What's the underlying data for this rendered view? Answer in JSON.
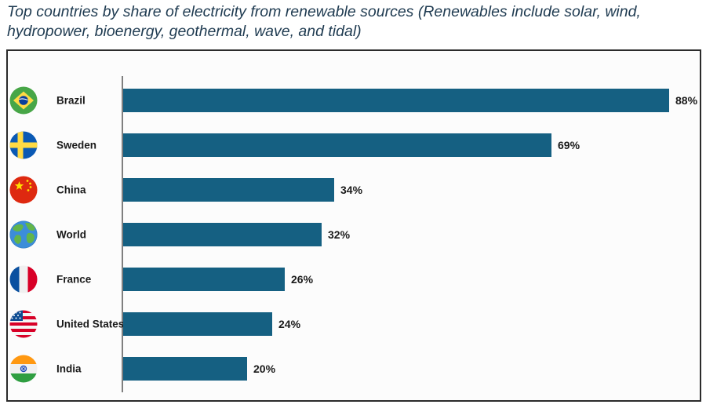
{
  "title": "Top countries by share of electricity from renewable sources (Renewables include solar, wind,\nhydropower, bioenergy, geothermal, wave, and tidal)",
  "chart_data": {
    "type": "bar",
    "orientation": "horizontal",
    "title": "Top countries by share of electricity from renewable sources (Renewables include solar, wind, hydropower, bioenergy, geothermal, wave, and tidal)",
    "categories": [
      "Brazil",
      "Sweden",
      "China",
      "World",
      "France",
      "United States",
      "India"
    ],
    "values": [
      88,
      69,
      34,
      32,
      26,
      24,
      20
    ],
    "value_labels": [
      "88%",
      "69%",
      "34%",
      "32%",
      "26%",
      "24%",
      "20%"
    ],
    "unit": "%",
    "xlim": [
      0,
      93
    ],
    "grid": false,
    "legend": "none",
    "bar_color": "#156082",
    "flag_icons": [
      "brazil-flag-icon",
      "sweden-flag-icon",
      "china-flag-icon",
      "world-globe-icon",
      "france-flag-icon",
      "united-states-flag-icon",
      "india-flag-icon"
    ]
  },
  "colors": {
    "bar": "#156082",
    "title_text": "#1f3b51",
    "label_text": "#1a1a1a",
    "axis_line": "#7f7f7f",
    "chart_border": "#2b2b2b",
    "chart_background": "#fcfcfc"
  }
}
